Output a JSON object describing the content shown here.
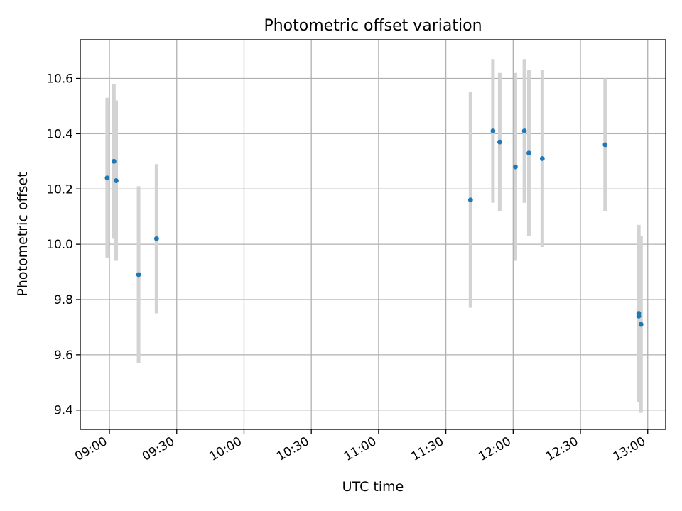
{
  "chart_data": {
    "type": "scatter",
    "title": "Photometric offset variation",
    "xlabel": "UTC time",
    "ylabel": "Photometric offset",
    "x_tick_labels": [
      "09:00",
      "09:30",
      "10:00",
      "10:30",
      "11:00",
      "11:30",
      "12:00",
      "12:30",
      "13:00"
    ],
    "y_tick_labels": [
      "9.4",
      "9.6",
      "9.8",
      "10.0",
      "10.2",
      "10.4",
      "10.6"
    ],
    "x_ticks": [
      "09:00",
      "09:30",
      "10:00",
      "10:30",
      "11:00",
      "11:30",
      "12:00",
      "12:30",
      "13:00"
    ],
    "y_ticks": [
      9.4,
      9.6,
      9.8,
      10.0,
      10.2,
      10.4,
      10.6
    ],
    "xlim": [
      "08:47",
      "13:08"
    ],
    "ylim": [
      9.33,
      10.74
    ],
    "grid": true,
    "marker_color": "#1f77b4",
    "errorbar_color": "#d3d3d3",
    "points": [
      {
        "x": "08:59",
        "y": 10.24,
        "yerr": 0.29
      },
      {
        "x": "09:02",
        "y": 10.3,
        "yerr": 0.28
      },
      {
        "x": "09:03",
        "y": 10.23,
        "yerr": 0.29
      },
      {
        "x": "09:13",
        "y": 9.89,
        "yerr": 0.32
      },
      {
        "x": "09:21",
        "y": 10.02,
        "yerr": 0.27
      },
      {
        "x": "11:41",
        "y": 10.16,
        "yerr": 0.39
      },
      {
        "x": "11:51",
        "y": 10.41,
        "yerr": 0.26
      },
      {
        "x": "11:54",
        "y": 10.37,
        "yerr": 0.25
      },
      {
        "x": "12:01",
        "y": 10.28,
        "yerr": 0.34
      },
      {
        "x": "12:05",
        "y": 10.41,
        "yerr": 0.26
      },
      {
        "x": "12:07",
        "y": 10.33,
        "yerr": 0.3
      },
      {
        "x": "12:13",
        "y": 10.31,
        "yerr": 0.32
      },
      {
        "x": "12:41",
        "y": 10.36,
        "yerr": 0.24
      },
      {
        "x": "12:56",
        "y": 9.75,
        "yerr": 0.32
      },
      {
        "x": "12:56",
        "y": 9.74,
        "yerr": 0.31
      },
      {
        "x": "12:57",
        "y": 9.71,
        "yerr": 0.32
      }
    ]
  }
}
